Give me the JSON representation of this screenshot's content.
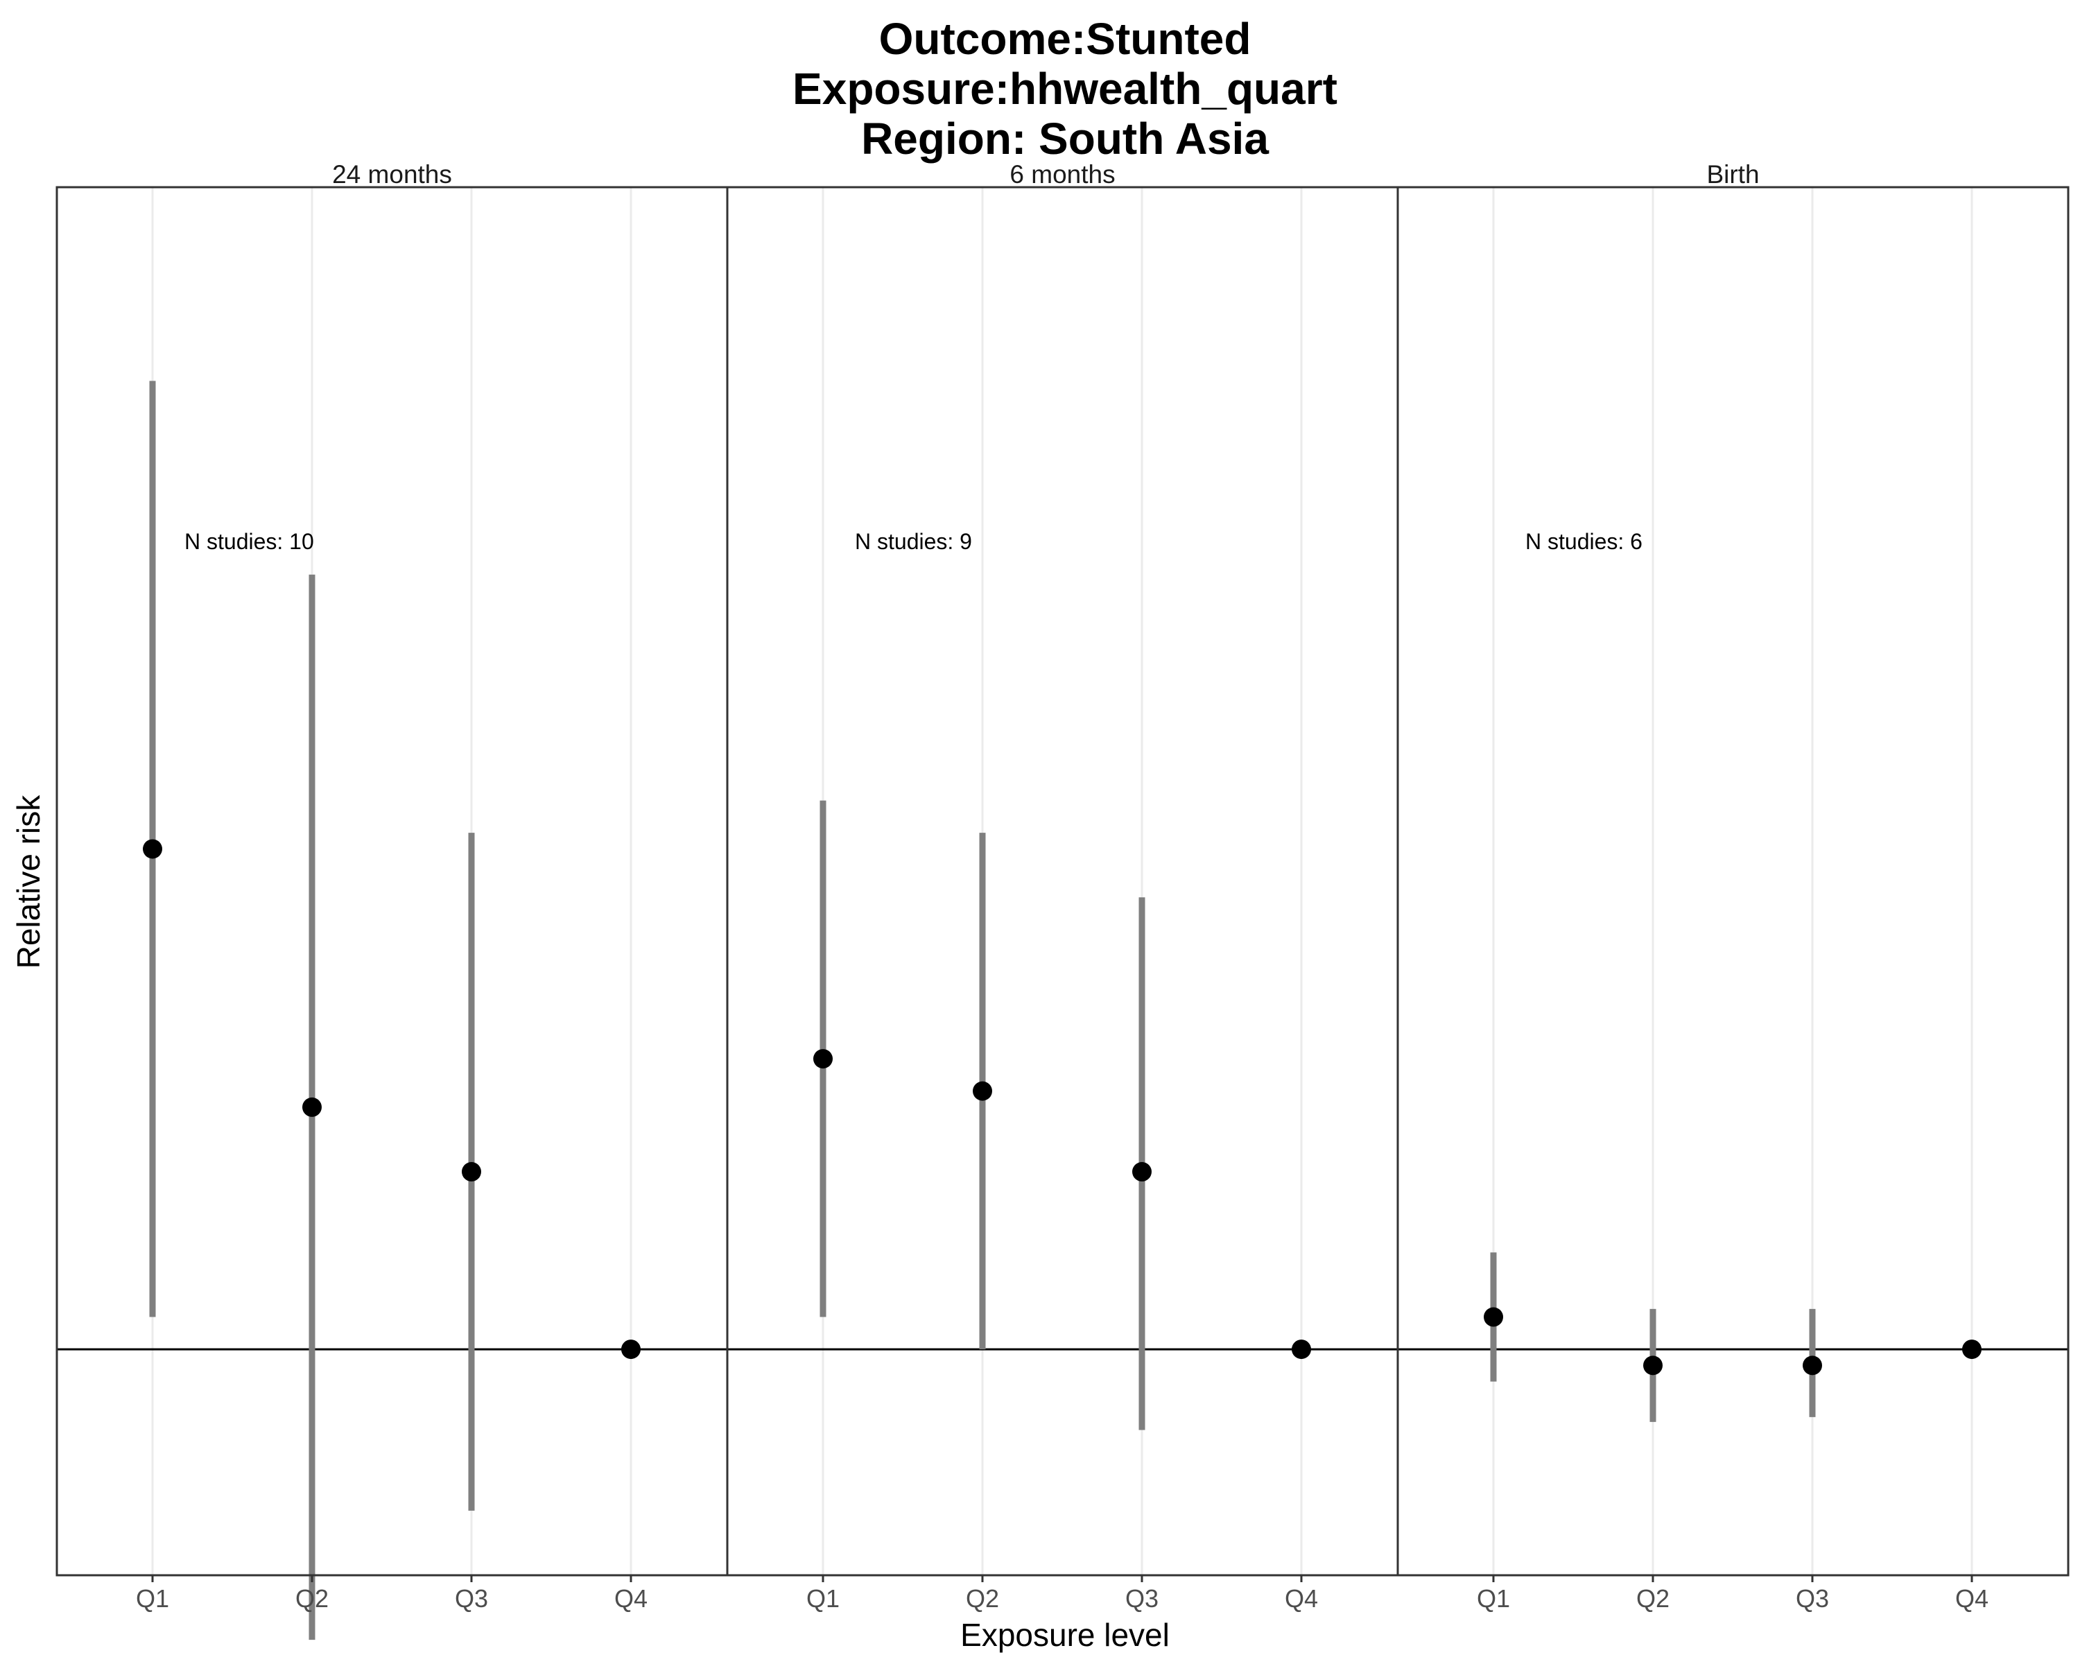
{
  "title_lines": [
    "Outcome:Stunted",
    "Exposure:hhwealth_quart",
    "Region: South Asia"
  ],
  "chart_data": {
    "type": "scatter",
    "subtype": "point-range, faceted",
    "xlabel": "Exposure level",
    "ylabel": "Relative risk",
    "categories": [
      "Q1",
      "Q2",
      "Q3",
      "Q4"
    ],
    "reference_line_y": 1,
    "y_tick_labels_shown": false,
    "grid": "vertical major gridlines only",
    "ylim": [
      0.86,
      1.72
    ],
    "facets": [
      {
        "label": "24 months",
        "annotation": "N studies: 10",
        "series": [
          {
            "x": "Q1",
            "estimate": 1.31,
            "lower": 1.02,
            "upper": 1.6
          },
          {
            "x": "Q2",
            "estimate": 1.15,
            "lower": 0.82,
            "upper": 1.48
          },
          {
            "x": "Q3",
            "estimate": 1.11,
            "lower": 0.9,
            "upper": 1.32
          },
          {
            "x": "Q4",
            "estimate": 1.0,
            "lower": 1.0,
            "upper": 1.0
          }
        ]
      },
      {
        "label": "6 months",
        "annotation": "N studies: 9",
        "series": [
          {
            "x": "Q1",
            "estimate": 1.18,
            "lower": 1.02,
            "upper": 1.34
          },
          {
            "x": "Q2",
            "estimate": 1.16,
            "lower": 1.0,
            "upper": 1.32
          },
          {
            "x": "Q3",
            "estimate": 1.11,
            "lower": 0.95,
            "upper": 1.28
          },
          {
            "x": "Q4",
            "estimate": 1.0,
            "lower": 1.0,
            "upper": 1.0
          }
        ]
      },
      {
        "label": "Birth",
        "annotation": "N studies: 6",
        "series": [
          {
            "x": "Q1",
            "estimate": 1.02,
            "lower": 0.98,
            "upper": 1.06
          },
          {
            "x": "Q2",
            "estimate": 0.99,
            "lower": 0.955,
            "upper": 1.025
          },
          {
            "x": "Q3",
            "estimate": 0.99,
            "lower": 0.958,
            "upper": 1.025
          },
          {
            "x": "Q4",
            "estimate": 1.0,
            "lower": 1.0,
            "upper": 1.0
          }
        ]
      }
    ]
  },
  "colors": {
    "point": "#000000",
    "errorbar": "#7f7f7f",
    "gridline": "#ebebeb",
    "panel_border": "#333333",
    "reference_line": "#000000",
    "tick_label": "#4d4d4d"
  }
}
